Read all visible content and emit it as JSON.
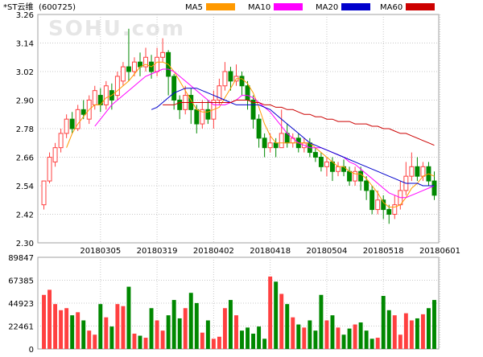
{
  "header": {
    "stock_name": "*ST云维",
    "stock_code": "(600725)",
    "watermark": "SOHU.com"
  },
  "chart_data": [
    {
      "type": "candlestick",
      "name": "price",
      "y_ticks": [
        "3.26",
        "3.14",
        "3.02",
        "2.90",
        "2.78",
        "2.66",
        "2.54",
        "2.42",
        "2.30"
      ],
      "ylim": [
        2.3,
        3.26
      ],
      "grid": true,
      "x_tick_labels": [
        "20180305",
        "20180319",
        "20180402",
        "20180418",
        "20180504",
        "20180518",
        "20180601"
      ],
      "x_tick_index": [
        10,
        20,
        30,
        40,
        50,
        60,
        70
      ],
      "legend": [
        {
          "name": "MA5",
          "color": "#ff9900"
        },
        {
          "name": "MA10",
          "color": "#ff00ff"
        },
        {
          "name": "MA20",
          "color": "#0000cc"
        },
        {
          "name": "MA60",
          "color": "#cc0000"
        }
      ],
      "up_color": "#ff4040",
      "down_color": "#008800",
      "candles": [
        [
          2.46,
          2.56,
          2.56,
          2.44
        ],
        [
          2.56,
          2.66,
          2.68,
          2.55
        ],
        [
          2.64,
          2.7,
          2.72,
          2.62
        ],
        [
          2.7,
          2.76,
          2.78,
          2.68
        ],
        [
          2.76,
          2.82,
          2.84,
          2.74
        ],
        [
          2.82,
          2.78,
          2.85,
          2.76
        ],
        [
          2.78,
          2.86,
          2.88,
          2.77
        ],
        [
          2.86,
          2.84,
          2.9,
          2.82
        ],
        [
          2.82,
          2.9,
          2.92,
          2.8
        ],
        [
          2.88,
          2.94,
          2.96,
          2.86
        ],
        [
          2.92,
          2.88,
          2.95,
          2.85
        ],
        [
          2.88,
          2.96,
          2.98,
          2.86
        ],
        [
          2.94,
          2.9,
          2.97,
          2.86
        ],
        [
          2.92,
          3.0,
          3.02,
          2.9
        ],
        [
          2.98,
          3.04,
          3.06,
          2.96
        ],
        [
          3.04,
          3.02,
          3.2,
          2.98
        ],
        [
          3.02,
          3.06,
          3.08,
          3.0
        ],
        [
          3.06,
          3.04,
          3.1,
          3.0
        ],
        [
          3.04,
          3.08,
          3.12,
          3.02
        ],
        [
          3.06,
          3.02,
          3.09,
          2.99
        ],
        [
          3.02,
          3.08,
          3.12,
          3.0
        ],
        [
          3.08,
          3.1,
          3.16,
          3.06
        ],
        [
          3.1,
          3.0,
          3.11,
          2.92
        ],
        [
          3.0,
          2.9,
          3.01,
          2.86
        ],
        [
          2.9,
          2.86,
          2.92,
          2.82
        ],
        [
          2.86,
          2.92,
          2.96,
          2.84
        ],
        [
          2.92,
          2.86,
          2.95,
          2.8
        ],
        [
          2.86,
          2.8,
          2.88,
          2.76
        ],
        [
          2.8,
          2.86,
          2.9,
          2.78
        ],
        [
          2.86,
          2.82,
          2.9,
          2.8
        ],
        [
          2.82,
          2.9,
          2.94,
          2.78
        ],
        [
          2.9,
          2.96,
          2.99,
          2.88
        ],
        [
          2.96,
          3.02,
          3.06,
          2.94
        ],
        [
          3.02,
          2.98,
          3.04,
          2.94
        ],
        [
          2.98,
          3.0,
          3.05,
          2.96
        ],
        [
          3.0,
          2.96,
          3.02,
          2.92
        ],
        [
          2.96,
          2.9,
          2.98,
          2.86
        ],
        [
          2.9,
          2.82,
          2.92,
          2.78
        ],
        [
          2.82,
          2.74,
          2.84,
          2.7
        ],
        [
          2.74,
          2.7,
          2.76,
          2.66
        ],
        [
          2.7,
          2.72,
          2.76,
          2.68
        ],
        [
          2.72,
          2.7,
          2.74,
          2.66
        ],
        [
          2.7,
          2.76,
          2.86,
          2.7
        ],
        [
          2.76,
          2.72,
          2.8,
          2.7
        ],
        [
          2.72,
          2.74,
          2.76,
          2.7
        ],
        [
          2.74,
          2.7,
          2.76,
          2.68
        ],
        [
          2.7,
          2.72,
          2.74,
          2.68
        ],
        [
          2.72,
          2.68,
          2.74,
          2.66
        ],
        [
          2.68,
          2.66,
          2.7,
          2.64
        ],
        [
          2.66,
          2.62,
          2.68,
          2.6
        ],
        [
          2.62,
          2.64,
          2.66,
          2.58
        ],
        [
          2.64,
          2.6,
          2.66,
          2.56
        ],
        [
          2.6,
          2.62,
          2.64,
          2.58
        ],
        [
          2.62,
          2.6,
          2.65,
          2.58
        ],
        [
          2.6,
          2.56,
          2.62,
          2.54
        ],
        [
          2.56,
          2.6,
          2.62,
          2.54
        ],
        [
          2.6,
          2.56,
          2.62,
          2.52
        ],
        [
          2.56,
          2.52,
          2.58,
          2.48
        ],
        [
          2.52,
          2.44,
          2.54,
          2.42
        ],
        [
          2.44,
          2.48,
          2.52,
          2.42
        ],
        [
          2.48,
          2.44,
          2.5,
          2.4
        ],
        [
          2.44,
          2.42,
          2.46,
          2.38
        ],
        [
          2.42,
          2.46,
          2.5,
          2.4
        ],
        [
          2.46,
          2.52,
          2.56,
          2.44
        ],
        [
          2.52,
          2.58,
          2.64,
          2.5
        ],
        [
          2.58,
          2.62,
          2.68,
          2.56
        ],
        [
          2.62,
          2.58,
          2.66,
          2.56
        ],
        [
          2.58,
          2.62,
          2.64,
          2.56
        ],
        [
          2.62,
          2.56,
          2.64,
          2.54
        ],
        [
          2.56,
          2.5,
          2.6,
          2.48
        ]
      ],
      "ma": [
        {
          "name": "MA5",
          "color": "#ff9900",
          "values": [
            null,
            null,
            null,
            null,
            2.7,
            2.76,
            2.8,
            2.83,
            2.86,
            2.88,
            2.88,
            2.91,
            2.92,
            2.94,
            2.96,
            2.98,
            3.01,
            3.04,
            3.05,
            3.04,
            3.06,
            3.06,
            3.05,
            3.02,
            2.98,
            2.94,
            2.9,
            2.86,
            2.85,
            2.85,
            2.86,
            2.87,
            2.91,
            2.95,
            2.99,
            2.99,
            2.97,
            2.93,
            2.87,
            2.8,
            2.75,
            2.72,
            2.72,
            2.72,
            2.72,
            2.72,
            2.72,
            2.72,
            2.7,
            2.68,
            2.66,
            2.64,
            2.62,
            2.62,
            2.6,
            2.59,
            2.59,
            2.57,
            2.54,
            2.51,
            2.47,
            2.45,
            2.45,
            2.46,
            2.49,
            2.53,
            2.55,
            2.58,
            2.59,
            2.58
          ]
        },
        {
          "name": "MA10",
          "color": "#ff00ff",
          "values": [
            null,
            null,
            null,
            null,
            null,
            null,
            null,
            null,
            null,
            2.79,
            2.82,
            2.85,
            2.88,
            2.9,
            2.92,
            2.94,
            2.96,
            2.98,
            3.0,
            3.01,
            3.02,
            3.03,
            3.03,
            3.02,
            3.0,
            2.98,
            2.96,
            2.94,
            2.92,
            2.9,
            2.88,
            2.88,
            2.88,
            2.89,
            2.9,
            2.92,
            2.92,
            2.91,
            2.89,
            2.87,
            2.85,
            2.82,
            2.79,
            2.76,
            2.74,
            2.72,
            2.71,
            2.7,
            2.7,
            2.7,
            2.69,
            2.68,
            2.67,
            2.66,
            2.64,
            2.63,
            2.61,
            2.59,
            2.57,
            2.55,
            2.53,
            2.51,
            2.5,
            2.49,
            2.49,
            2.5,
            2.51,
            2.52,
            2.53,
            2.54
          ]
        },
        {
          "name": "MA20",
          "color": "#0000cc",
          "values": [
            null,
            null,
            null,
            null,
            null,
            null,
            null,
            null,
            null,
            null,
            null,
            null,
            null,
            null,
            null,
            null,
            null,
            null,
            null,
            2.86,
            2.87,
            2.89,
            2.91,
            2.93,
            2.94,
            2.95,
            2.95,
            2.95,
            2.94,
            2.93,
            2.92,
            2.91,
            2.9,
            2.89,
            2.88,
            2.88,
            2.88,
            2.88,
            2.88,
            2.87,
            2.86,
            2.84,
            2.82,
            2.8,
            2.78,
            2.76,
            2.74,
            2.72,
            2.71,
            2.7,
            2.69,
            2.68,
            2.67,
            2.66,
            2.65,
            2.64,
            2.63,
            2.62,
            2.61,
            2.6,
            2.59,
            2.58,
            2.57,
            2.56,
            2.55,
            2.55,
            2.55,
            2.54,
            2.54,
            2.54
          ]
        },
        {
          "name": "MA60",
          "color": "#cc0000",
          "values": [
            null,
            null,
            null,
            null,
            null,
            null,
            null,
            null,
            null,
            null,
            null,
            null,
            null,
            null,
            null,
            null,
            null,
            null,
            null,
            null,
            null,
            2.88,
            2.88,
            2.88,
            2.89,
            2.89,
            2.89,
            2.89,
            2.89,
            2.89,
            2.89,
            2.89,
            2.89,
            2.89,
            2.9,
            2.9,
            2.9,
            2.89,
            2.89,
            2.88,
            2.88,
            2.87,
            2.87,
            2.86,
            2.86,
            2.85,
            2.84,
            2.84,
            2.83,
            2.83,
            2.82,
            2.82,
            2.81,
            2.81,
            2.81,
            2.8,
            2.8,
            2.8,
            2.79,
            2.79,
            2.78,
            2.78,
            2.77,
            2.76,
            2.76,
            2.75,
            2.74,
            2.73,
            2.72,
            2.71
          ]
        }
      ]
    },
    {
      "type": "bar",
      "name": "volume",
      "y_ticks": [
        "89847",
        "67385",
        "44923",
        "22461",
        "0"
      ],
      "ylim": [
        0,
        89847
      ],
      "grid": true,
      "values": [
        53000,
        58000,
        44000,
        38000,
        40000,
        33000,
        36000,
        28000,
        18000,
        14000,
        44000,
        31000,
        22000,
        44000,
        42000,
        61000,
        15000,
        13000,
        11000,
        40000,
        28000,
        18000,
        33000,
        48000,
        30000,
        40000,
        55000,
        45000,
        16000,
        28000,
        10000,
        12000,
        40000,
        48000,
        33000,
        18000,
        21000,
        15000,
        22000,
        10000,
        71000,
        66000,
        54000,
        44000,
        31000,
        24000,
        21000,
        28000,
        18000,
        53000,
        28000,
        33000,
        21000,
        14000,
        20000,
        24000,
        26000,
        18000,
        10000,
        11000,
        52000,
        38000,
        33000,
        14000,
        35000,
        28000,
        30000,
        34000,
        40000,
        48000
      ]
    }
  ]
}
